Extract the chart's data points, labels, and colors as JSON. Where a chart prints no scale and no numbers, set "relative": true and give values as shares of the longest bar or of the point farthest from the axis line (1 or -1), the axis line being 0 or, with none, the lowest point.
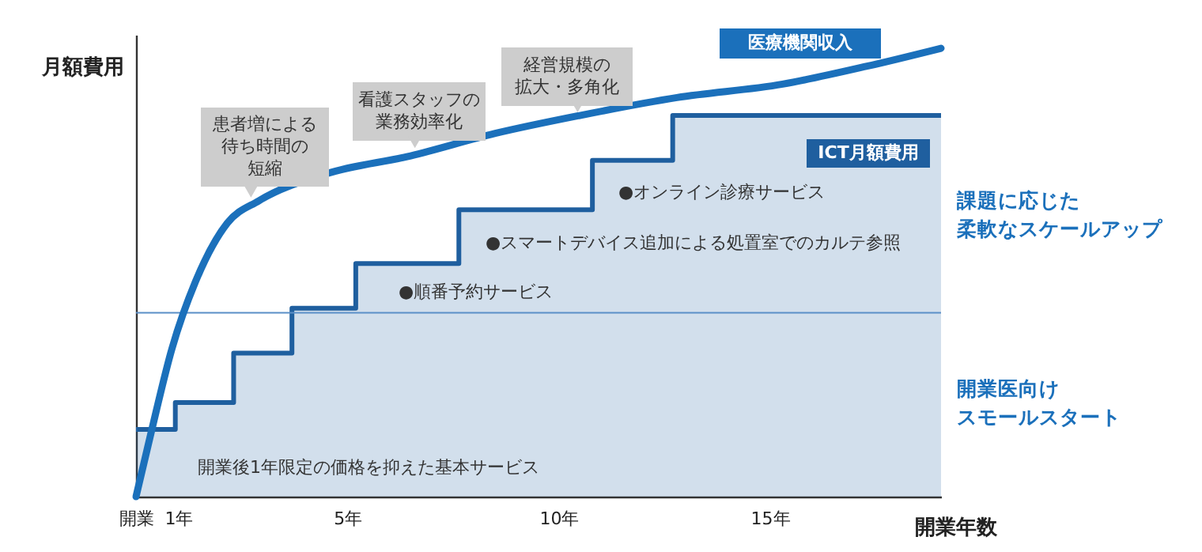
{
  "chart_data": {
    "type": "line",
    "relative": true,
    "ylabel": "月額費用",
    "xlabel": "開業年数",
    "xlim": [
      0,
      19.05
    ],
    "xticks": [
      {
        "value": 0,
        "label": "開業"
      },
      {
        "value": 1,
        "label": "1年"
      },
      {
        "value": 5,
        "label": "5年"
      },
      {
        "value": 10,
        "label": "10年"
      },
      {
        "value": 15,
        "label": "15年"
      }
    ],
    "series": [
      {
        "name": "ICT月額費用",
        "type": "area",
        "color": "#1f5f9f",
        "x": [
          0,
          0.93,
          0.93,
          2.31,
          2.31,
          3.69,
          3.69,
          5.2,
          5.2,
          7.64,
          7.64,
          10.8,
          10.8,
          12.7,
          12.7,
          19.05
        ],
        "values": [
          0.15,
          0.15,
          0.21,
          0.21,
          0.32,
          0.32,
          0.42,
          0.42,
          0.52,
          0.52,
          0.64,
          0.64,
          0.75,
          0.75,
          0.85,
          0.85
        ]
      },
      {
        "name": "医療機関収入",
        "color": "#1b70bb",
        "x": [
          0,
          0.35,
          0.85,
          1.41,
          2.16,
          2.91,
          4.5,
          6.5,
          8.5,
          10.5,
          12.8,
          15.3,
          17.3,
          19.05
        ],
        "values": [
          0,
          0.14,
          0.33,
          0.48,
          0.61,
          0.66,
          0.72,
          0.76,
          0.81,
          0.85,
          0.89,
          0.92,
          0.96,
          1
        ]
      }
    ],
    "ref_lines": [
      {
        "axis": "y",
        "value": 0.41,
        "color": "#5b8fc7"
      }
    ],
    "annotations": [
      {
        "text": "患者増による待ち時間の短縮",
        "x": 2.72,
        "y": 0.65
      },
      {
        "text": "看護スタッフの業務効率化",
        "x": 6.6,
        "y": 0.76
      },
      {
        "text": "経営規模の拡大・多角化",
        "x": 10.45,
        "y": 0.84
      },
      "●オンライン診療サービス",
      "●スマートデバイス追加による処置室でのカルテ参照",
      "●順番予約サービス",
      "開業後1年限定の価格を抑えた基本サービス",
      "課題に応じた柔軟なスケールアップ",
      "開業医向けスモールスタート"
    ]
  }
}
